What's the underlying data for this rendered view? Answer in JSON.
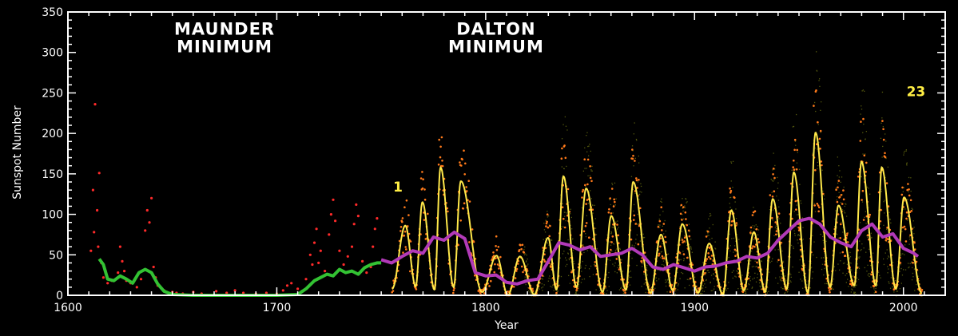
{
  "chart_data": {
    "type": "scatter",
    "title": "",
    "xlabel": "Year",
    "ylabel": "Sunspot Number",
    "xlim": [
      1600,
      2020
    ],
    "ylim": [
      0,
      350
    ],
    "x_ticks": [
      1600,
      1700,
      1800,
      1900,
      2000
    ],
    "y_ticks": [
      0,
      50,
      100,
      150,
      200,
      250,
      300,
      350
    ],
    "grid": false,
    "legend": "none",
    "colors": {
      "background": "#000000",
      "frame": "#ffffff",
      "early_observations": "#ff2a2a",
      "daily_values": "#9aa21a",
      "monthly_values": "#ff7a1a",
      "smoothed_cycle": "#ffe94a",
      "longterm_early": "#33c233",
      "longterm_late": "#b23ab8"
    },
    "annotations": [
      {
        "lines": [
          "MAUNDER",
          "MINIMUM"
        ],
        "x": 1675,
        "y": 322
      },
      {
        "lines": [
          "DALTON",
          "MINIMUM"
        ],
        "x": 1805,
        "y": 322
      },
      {
        "text": "1",
        "x": 1758,
        "y": 128
      },
      {
        "text": "23",
        "x": 2006,
        "y": 246
      }
    ],
    "cycle_peaks": [
      [
        1761.5,
        86
      ],
      [
        1769.7,
        115
      ],
      [
        1778.4,
        158
      ],
      [
        1788.1,
        141
      ],
      [
        1805.2,
        49
      ],
      [
        1816.4,
        48
      ],
      [
        1829.9,
        71
      ],
      [
        1837.2,
        147
      ],
      [
        1848.1,
        132
      ],
      [
        1860.1,
        98
      ],
      [
        1870.6,
        140
      ],
      [
        1883.9,
        75
      ],
      [
        1894.1,
        88
      ],
      [
        1907.0,
        64
      ],
      [
        1917.6,
        105
      ],
      [
        1928.4,
        78
      ],
      [
        1937.4,
        119
      ],
      [
        1947.5,
        152
      ],
      [
        1957.9,
        201
      ],
      [
        1968.9,
        111
      ],
      [
        1979.9,
        165
      ],
      [
        1989.6,
        158
      ],
      [
        2000.3,
        121
      ]
    ],
    "cycle_minima": [
      [
        1755.2,
        8
      ],
      [
        1766.5,
        11
      ],
      [
        1775.5,
        7
      ],
      [
        1784.7,
        10
      ],
      [
        1798.3,
        4
      ],
      [
        1810.6,
        0
      ],
      [
        1823.3,
        1
      ],
      [
        1833.9,
        7
      ],
      [
        1843.5,
        10
      ],
      [
        1856.0,
        4
      ],
      [
        1867.2,
        7
      ],
      [
        1878.9,
        3
      ],
      [
        1889.6,
        6
      ],
      [
        1901.7,
        3
      ],
      [
        1913.6,
        1
      ],
      [
        1923.6,
        6
      ],
      [
        1933.8,
        4
      ],
      [
        1944.2,
        8
      ],
      [
        1954.3,
        3
      ],
      [
        1964.9,
        10
      ],
      [
        1976.5,
        12
      ],
      [
        1986.8,
        12
      ],
      [
        1996.4,
        8
      ],
      [
        2008.9,
        2
      ]
    ],
    "early_observations": [
      [
        1611,
        55
      ],
      [
        1612,
        130
      ],
      [
        1612.5,
        78
      ],
      [
        1613,
        236
      ],
      [
        1614,
        105
      ],
      [
        1614.5,
        60
      ],
      [
        1615,
        151
      ],
      [
        1616,
        40
      ],
      [
        1617,
        22
      ],
      [
        1618,
        30
      ],
      [
        1619,
        15
      ],
      [
        1621,
        18
      ],
      [
        1624,
        28
      ],
      [
        1625,
        60
      ],
      [
        1626,
        42
      ],
      [
        1627,
        30
      ],
      [
        1628,
        18
      ],
      [
        1630,
        15
      ],
      [
        1633,
        10
      ],
      [
        1635,
        20
      ],
      [
        1637,
        80
      ],
      [
        1638,
        105
      ],
      [
        1639,
        90
      ],
      [
        1640,
        120
      ],
      [
        1641,
        35
      ],
      [
        1642,
        22
      ],
      [
        1643,
        12
      ],
      [
        1646,
        6
      ],
      [
        1650,
        4
      ],
      [
        1652,
        3
      ],
      [
        1655,
        2
      ],
      [
        1660,
        4
      ],
      [
        1664,
        2
      ],
      [
        1671,
        5
      ],
      [
        1676,
        3
      ],
      [
        1680,
        6
      ],
      [
        1684,
        3
      ],
      [
        1690,
        2
      ],
      [
        1695,
        3
      ],
      [
        1700,
        2
      ],
      [
        1703,
        6
      ],
      [
        1705,
        12
      ],
      [
        1707,
        15
      ],
      [
        1710,
        8
      ],
      [
        1712,
        5
      ],
      [
        1714,
        20
      ],
      [
        1716,
        50
      ],
      [
        1717,
        38
      ],
      [
        1718,
        65
      ],
      [
        1719,
        82
      ],
      [
        1720,
        40
      ],
      [
        1721,
        55
      ],
      [
        1723,
        30
      ],
      [
        1725,
        75
      ],
      [
        1726,
        100
      ],
      [
        1727,
        118
      ],
      [
        1728,
        92
      ],
      [
        1730,
        55
      ],
      [
        1732,
        38
      ],
      [
        1734,
        48
      ],
      [
        1736,
        60
      ],
      [
        1737,
        88
      ],
      [
        1738,
        112
      ],
      [
        1739,
        98
      ],
      [
        1741,
        42
      ],
      [
        1743,
        28
      ],
      [
        1745,
        35
      ],
      [
        1746,
        60
      ],
      [
        1747,
        82
      ],
      [
        1748,
        95
      ]
    ],
    "longterm_early": [
      [
        1615,
        45
      ],
      [
        1617,
        38
      ],
      [
        1619,
        20
      ],
      [
        1622,
        18
      ],
      [
        1625,
        24
      ],
      [
        1628,
        20
      ],
      [
        1631,
        15
      ],
      [
        1634,
        28
      ],
      [
        1637,
        32
      ],
      [
        1640,
        28
      ],
      [
        1643,
        14
      ],
      [
        1646,
        5
      ],
      [
        1650,
        1
      ],
      [
        1660,
        0
      ],
      [
        1680,
        0
      ],
      [
        1700,
        0
      ],
      [
        1710,
        1
      ],
      [
        1714,
        8
      ],
      [
        1718,
        18
      ],
      [
        1721,
        22
      ],
      [
        1724,
        26
      ],
      [
        1727,
        24
      ],
      [
        1730,
        32
      ],
      [
        1733,
        28
      ],
      [
        1736,
        30
      ],
      [
        1739,
        26
      ],
      [
        1742,
        34
      ],
      [
        1745,
        38
      ],
      [
        1748,
        40
      ],
      [
        1750,
        40
      ]
    ],
    "longterm_late": [
      [
        1750,
        44
      ],
      [
        1755,
        40
      ],
      [
        1760,
        48
      ],
      [
        1765,
        55
      ],
      [
        1770,
        52
      ],
      [
        1775,
        72
      ],
      [
        1780,
        68
      ],
      [
        1785,
        78
      ],
      [
        1790,
        70
      ],
      [
        1795,
        28
      ],
      [
        1800,
        24
      ],
      [
        1805,
        25
      ],
      [
        1810,
        16
      ],
      [
        1815,
        14
      ],
      [
        1820,
        18
      ],
      [
        1825,
        20
      ],
      [
        1830,
        42
      ],
      [
        1835,
        65
      ],
      [
        1840,
        62
      ],
      [
        1845,
        56
      ],
      [
        1850,
        60
      ],
      [
        1855,
        48
      ],
      [
        1860,
        50
      ],
      [
        1865,
        52
      ],
      [
        1870,
        58
      ],
      [
        1875,
        50
      ],
      [
        1880,
        35
      ],
      [
        1885,
        32
      ],
      [
        1890,
        38
      ],
      [
        1895,
        34
      ],
      [
        1900,
        30
      ],
      [
        1905,
        35
      ],
      [
        1910,
        36
      ],
      [
        1915,
        40
      ],
      [
        1920,
        42
      ],
      [
        1925,
        48
      ],
      [
        1930,
        46
      ],
      [
        1935,
        52
      ],
      [
        1940,
        68
      ],
      [
        1945,
        80
      ],
      [
        1950,
        92
      ],
      [
        1955,
        95
      ],
      [
        1960,
        88
      ],
      [
        1965,
        72
      ],
      [
        1970,
        65
      ],
      [
        1975,
        60
      ],
      [
        1980,
        80
      ],
      [
        1985,
        88
      ],
      [
        1990,
        72
      ],
      [
        1995,
        76
      ],
      [
        2000,
        58
      ],
      [
        2005,
        52
      ],
      [
        2007,
        48
      ]
    ]
  }
}
